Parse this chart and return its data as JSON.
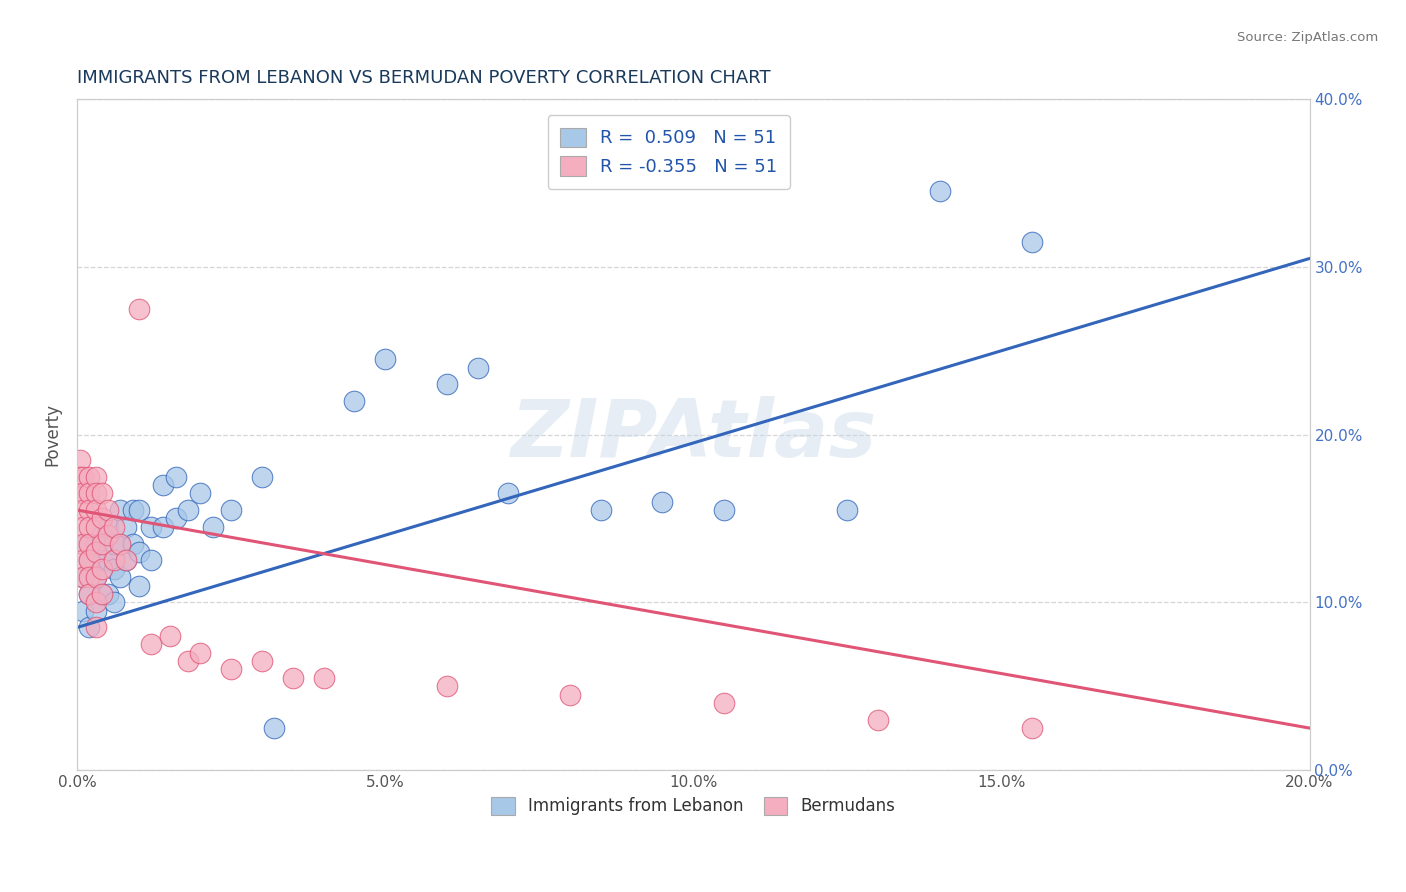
{
  "title": "IMMIGRANTS FROM LEBANON VS BERMUDAN POVERTY CORRELATION CHART",
  "source": "Source: ZipAtlas.com",
  "xlabel_blue": "Immigrants from Lebanon",
  "xlabel_pink": "Bermudans",
  "ylabel": "Poverty",
  "watermark": "ZIPAtlas",
  "legend_blue_r": "R =  0.509",
  "legend_blue_n": "N = 51",
  "legend_pink_r": "R = -0.355",
  "legend_pink_n": "N = 51",
  "xlim": [
    0.0,
    0.2
  ],
  "ylim": [
    0.0,
    0.4
  ],
  "blue_color": "#a8c8e8",
  "pink_color": "#f4aec0",
  "blue_line_color": "#3366bb",
  "pink_line_color": "#e05575",
  "title_color": "#1a3a5c",
  "blue_scatter": [
    [
      0.001,
      0.135
    ],
    [
      0.001,
      0.095
    ],
    [
      0.001,
      0.115
    ],
    [
      0.002,
      0.125
    ],
    [
      0.002,
      0.105
    ],
    [
      0.002,
      0.085
    ],
    [
      0.003,
      0.135
    ],
    [
      0.003,
      0.115
    ],
    [
      0.003,
      0.095
    ],
    [
      0.004,
      0.14
    ],
    [
      0.004,
      0.125
    ],
    [
      0.004,
      0.105
    ],
    [
      0.005,
      0.145
    ],
    [
      0.005,
      0.125
    ],
    [
      0.005,
      0.105
    ],
    [
      0.006,
      0.135
    ],
    [
      0.006,
      0.12
    ],
    [
      0.006,
      0.1
    ],
    [
      0.007,
      0.155
    ],
    [
      0.007,
      0.135
    ],
    [
      0.007,
      0.115
    ],
    [
      0.008,
      0.145
    ],
    [
      0.008,
      0.125
    ],
    [
      0.009,
      0.155
    ],
    [
      0.009,
      0.135
    ],
    [
      0.01,
      0.155
    ],
    [
      0.01,
      0.13
    ],
    [
      0.01,
      0.11
    ],
    [
      0.012,
      0.145
    ],
    [
      0.012,
      0.125
    ],
    [
      0.014,
      0.17
    ],
    [
      0.014,
      0.145
    ],
    [
      0.016,
      0.175
    ],
    [
      0.016,
      0.15
    ],
    [
      0.018,
      0.155
    ],
    [
      0.02,
      0.165
    ],
    [
      0.022,
      0.145
    ],
    [
      0.025,
      0.155
    ],
    [
      0.03,
      0.175
    ],
    [
      0.032,
      0.025
    ],
    [
      0.045,
      0.22
    ],
    [
      0.05,
      0.245
    ],
    [
      0.06,
      0.23
    ],
    [
      0.065,
      0.24
    ],
    [
      0.07,
      0.165
    ],
    [
      0.085,
      0.155
    ],
    [
      0.095,
      0.16
    ],
    [
      0.105,
      0.155
    ],
    [
      0.125,
      0.155
    ],
    [
      0.14,
      0.345
    ],
    [
      0.155,
      0.315
    ]
  ],
  "pink_scatter": [
    [
      0.0005,
      0.185
    ],
    [
      0.0005,
      0.175
    ],
    [
      0.0005,
      0.165
    ],
    [
      0.001,
      0.175
    ],
    [
      0.001,
      0.165
    ],
    [
      0.001,
      0.155
    ],
    [
      0.001,
      0.145
    ],
    [
      0.001,
      0.135
    ],
    [
      0.001,
      0.125
    ],
    [
      0.001,
      0.115
    ],
    [
      0.002,
      0.175
    ],
    [
      0.002,
      0.165
    ],
    [
      0.002,
      0.155
    ],
    [
      0.002,
      0.145
    ],
    [
      0.002,
      0.135
    ],
    [
      0.002,
      0.125
    ],
    [
      0.002,
      0.115
    ],
    [
      0.002,
      0.105
    ],
    [
      0.003,
      0.175
    ],
    [
      0.003,
      0.165
    ],
    [
      0.003,
      0.155
    ],
    [
      0.003,
      0.145
    ],
    [
      0.003,
      0.13
    ],
    [
      0.003,
      0.115
    ],
    [
      0.003,
      0.1
    ],
    [
      0.003,
      0.085
    ],
    [
      0.004,
      0.165
    ],
    [
      0.004,
      0.15
    ],
    [
      0.004,
      0.135
    ],
    [
      0.004,
      0.12
    ],
    [
      0.004,
      0.105
    ],
    [
      0.005,
      0.155
    ],
    [
      0.005,
      0.14
    ],
    [
      0.006,
      0.145
    ],
    [
      0.006,
      0.125
    ],
    [
      0.007,
      0.135
    ],
    [
      0.008,
      0.125
    ],
    [
      0.01,
      0.275
    ],
    [
      0.012,
      0.075
    ],
    [
      0.015,
      0.08
    ],
    [
      0.018,
      0.065
    ],
    [
      0.02,
      0.07
    ],
    [
      0.025,
      0.06
    ],
    [
      0.03,
      0.065
    ],
    [
      0.035,
      0.055
    ],
    [
      0.04,
      0.055
    ],
    [
      0.06,
      0.05
    ],
    [
      0.08,
      0.045
    ],
    [
      0.105,
      0.04
    ],
    [
      0.13,
      0.03
    ],
    [
      0.155,
      0.025
    ]
  ],
  "blue_line_x": [
    0.0,
    0.2
  ],
  "blue_line_y": [
    0.085,
    0.305
  ],
  "pink_line_x": [
    0.0,
    0.2
  ],
  "pink_line_y": [
    0.155,
    0.025
  ]
}
